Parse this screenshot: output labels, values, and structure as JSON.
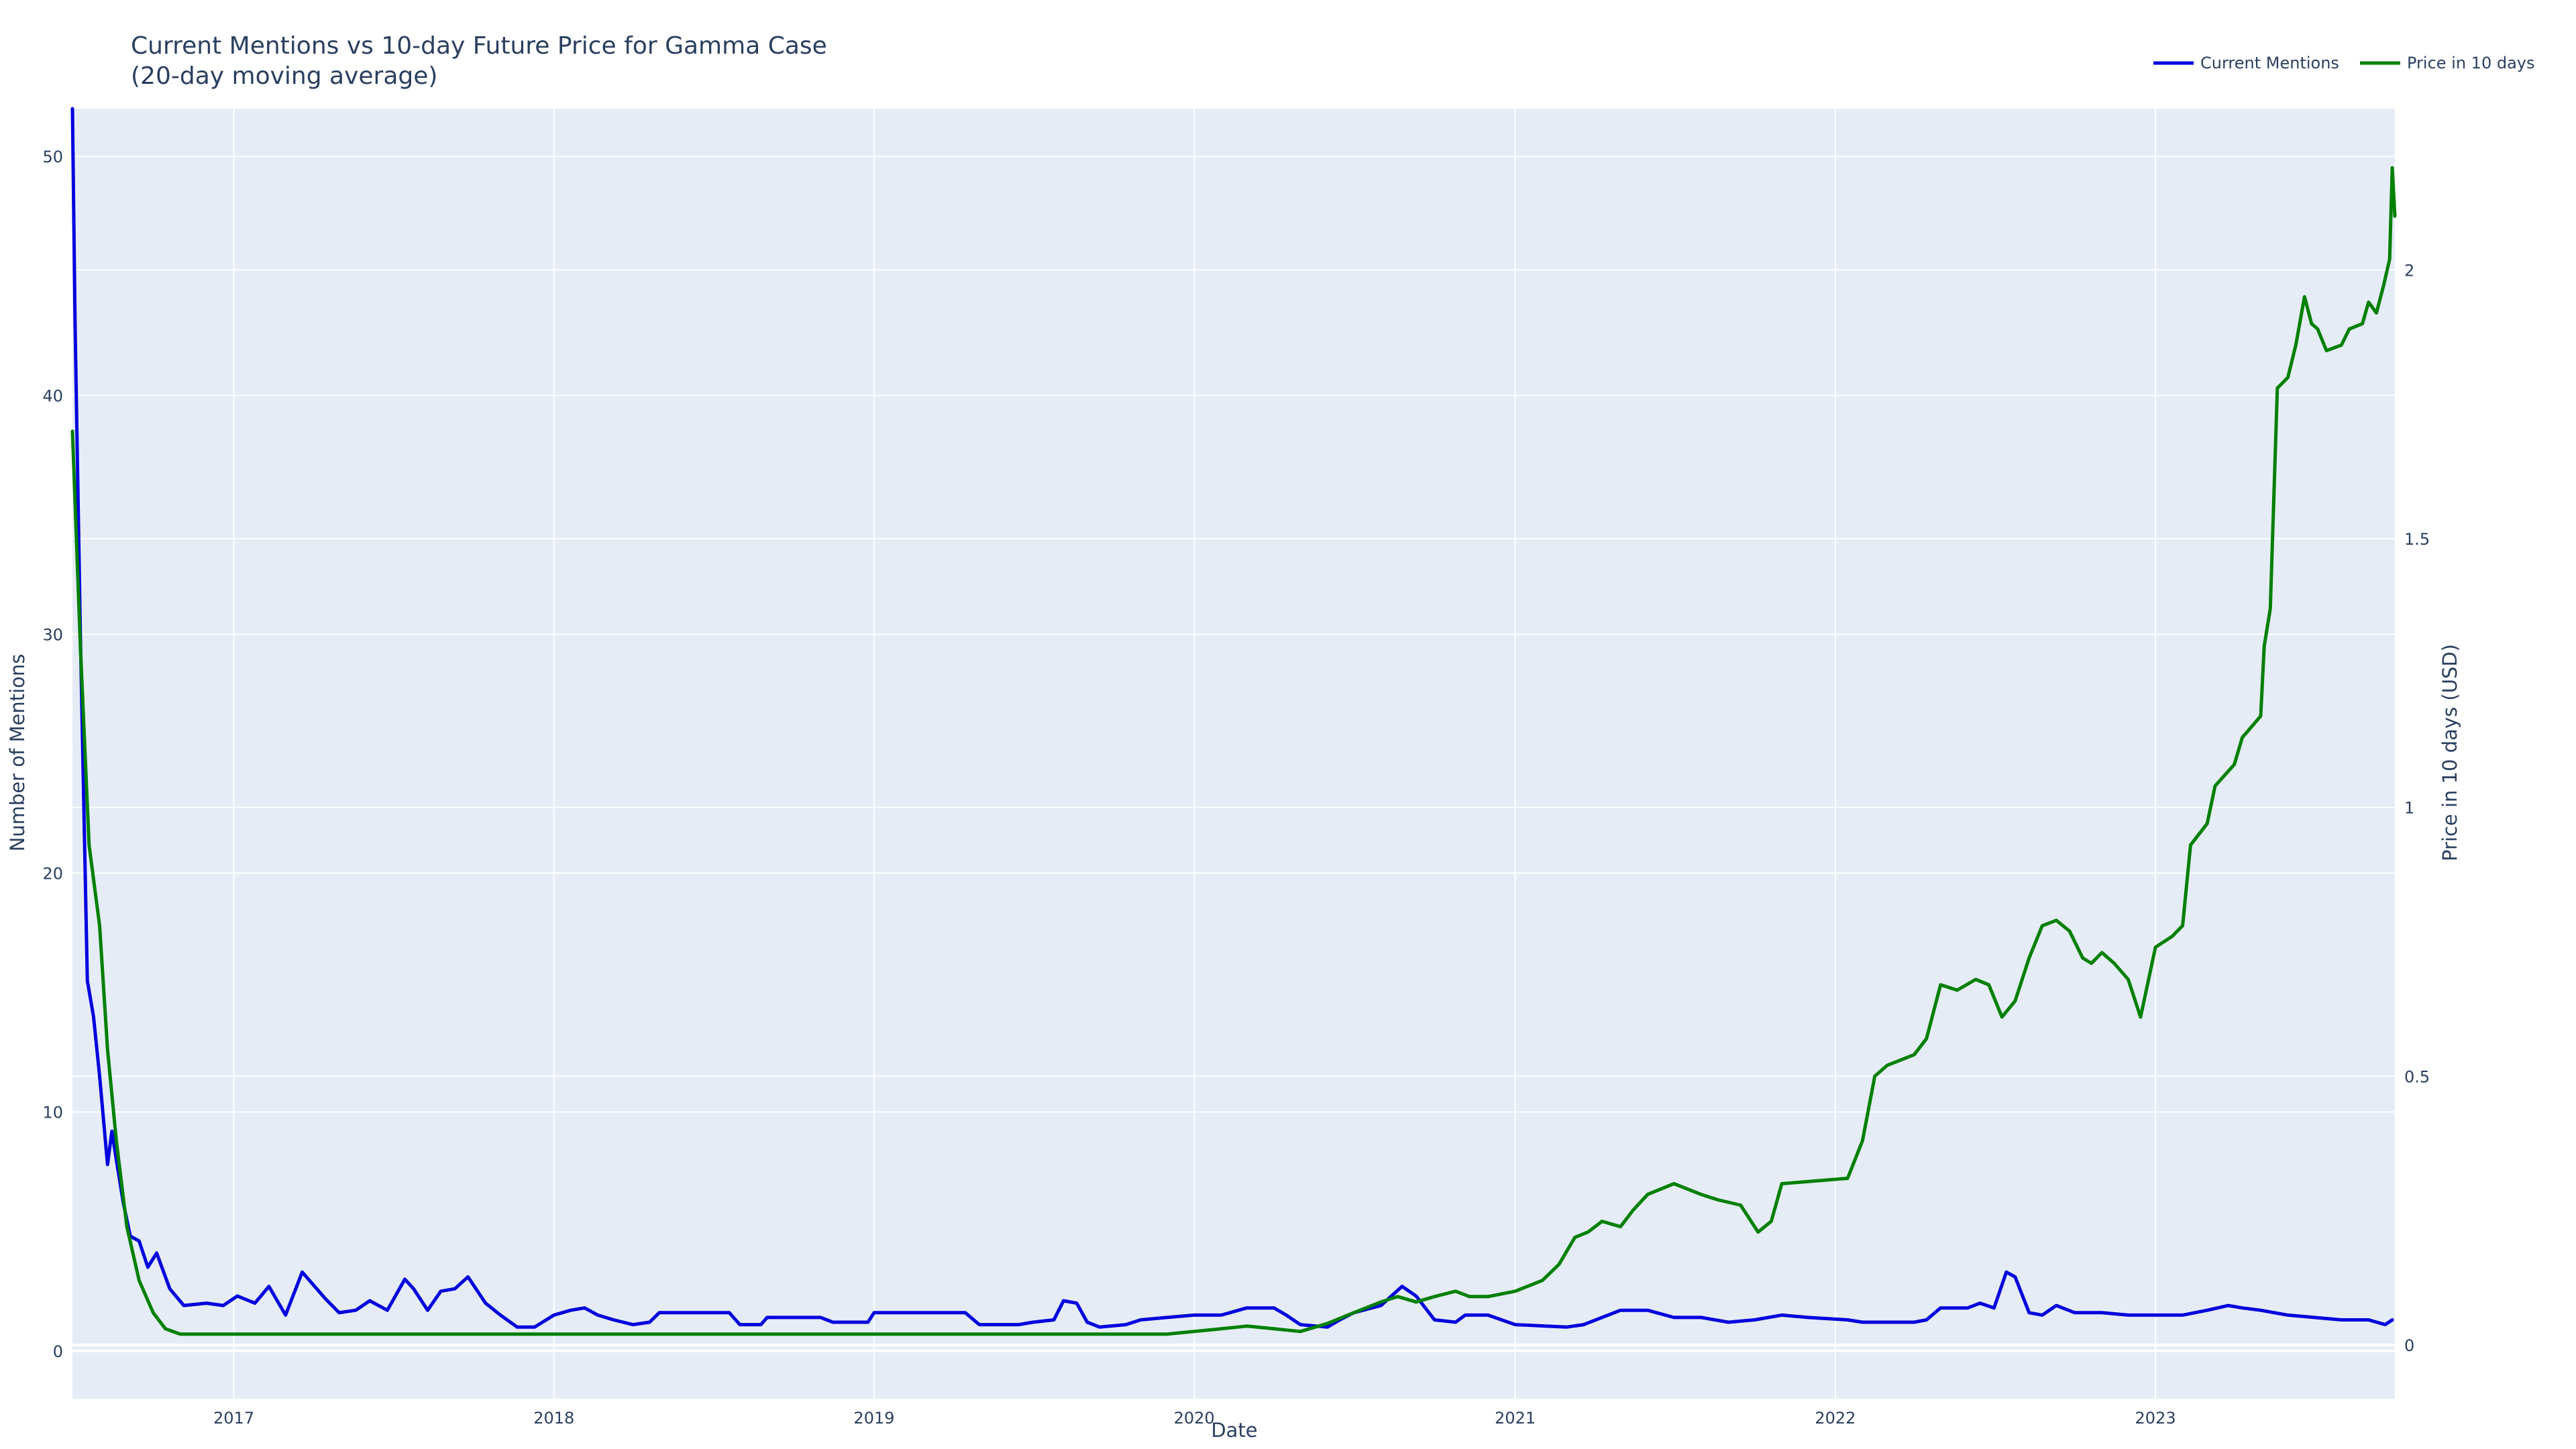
{
  "chart_data": {
    "type": "line",
    "title_line1": "Current Mentions vs 10-day Future Price for Gamma Case",
    "title_line2": "(20-day moving average)",
    "xlabel": "Date",
    "ylabel_left": "Number of Mentions",
    "ylabel_right": "Price in 10 days (USD)",
    "x_ticks": [
      "2017",
      "2018",
      "2019",
      "2020",
      "2021",
      "2022",
      "2023"
    ],
    "y_left_ticks": [
      "0",
      "10",
      "20",
      "30",
      "40",
      "50"
    ],
    "y_right_ticks": [
      "0",
      "0.5",
      "1",
      "1.5",
      "2"
    ],
    "xlim": [
      "2016-07-01",
      "2023-10-01"
    ],
    "ylim_left": [
      -2,
      52
    ],
    "ylim_right": [
      -0.1,
      2.3
    ],
    "grid": true,
    "legend_position": "top-right",
    "colors": {
      "mentions": "#0000dd",
      "price": "#008000",
      "plot_bg": "#e5ecf6",
      "grid": "#ffffff"
    },
    "series": [
      {
        "name": "Current Mentions",
        "axis": "left",
        "points": [
          [
            "2016-07-01",
            52.0
          ],
          [
            "2016-07-04",
            43.0
          ],
          [
            "2016-07-10",
            30.0
          ],
          [
            "2016-07-18",
            15.5
          ],
          [
            "2016-07-25",
            14.0
          ],
          [
            "2016-08-01",
            11.5
          ],
          [
            "2016-08-10",
            7.8
          ],
          [
            "2016-08-15",
            9.2
          ],
          [
            "2016-08-20",
            8.0
          ],
          [
            "2016-08-28",
            6.2
          ],
          [
            "2016-09-05",
            4.8
          ],
          [
            "2016-09-15",
            4.6
          ],
          [
            "2016-09-25",
            3.5
          ],
          [
            "2016-10-05",
            4.1
          ],
          [
            "2016-10-20",
            2.6
          ],
          [
            "2016-11-05",
            1.9
          ],
          [
            "2016-12-01",
            2.0
          ],
          [
            "2016-12-20",
            1.9
          ],
          [
            "2017-01-05",
            2.3
          ],
          [
            "2017-01-25",
            2.0
          ],
          [
            "2017-02-10",
            2.7
          ],
          [
            "2017-03-01",
            1.5
          ],
          [
            "2017-03-20",
            3.3
          ],
          [
            "2017-04-15",
            2.2
          ],
          [
            "2017-05-01",
            1.6
          ],
          [
            "2017-05-20",
            1.7
          ],
          [
            "2017-06-05",
            2.1
          ],
          [
            "2017-06-25",
            1.7
          ],
          [
            "2017-07-15",
            3.0
          ],
          [
            "2017-07-25",
            2.6
          ],
          [
            "2017-08-10",
            1.7
          ],
          [
            "2017-08-25",
            2.5
          ],
          [
            "2017-09-10",
            2.6
          ],
          [
            "2017-09-25",
            3.1
          ],
          [
            "2017-10-15",
            2.0
          ],
          [
            "2017-11-01",
            1.5
          ],
          [
            "2017-11-20",
            1.0
          ],
          [
            "2017-12-10",
            1.0
          ],
          [
            "2018-01-01",
            1.5
          ],
          [
            "2018-01-20",
            1.7
          ],
          [
            "2018-02-05",
            1.8
          ],
          [
            "2018-02-20",
            1.5
          ],
          [
            "2018-03-10",
            1.3
          ],
          [
            "2018-04-01",
            1.1
          ],
          [
            "2018-04-20",
            1.2
          ],
          [
            "2018-05-01",
            1.6
          ],
          [
            "2018-07-20",
            1.6
          ],
          [
            "2018-08-01",
            1.1
          ],
          [
            "2018-08-25",
            1.1
          ],
          [
            "2018-09-01",
            1.4
          ],
          [
            "2018-10-01",
            1.4
          ],
          [
            "2018-11-01",
            1.4
          ],
          [
            "2018-11-15",
            1.2
          ],
          [
            "2018-12-25",
            1.2
          ],
          [
            "2019-01-01",
            1.6
          ],
          [
            "2019-04-15",
            1.6
          ],
          [
            "2019-05-01",
            1.1
          ],
          [
            "2019-06-15",
            1.1
          ],
          [
            "2019-07-01",
            1.2
          ],
          [
            "2019-07-25",
            1.3
          ],
          [
            "2019-08-05",
            2.1
          ],
          [
            "2019-08-20",
            2.0
          ],
          [
            "2019-09-01",
            1.2
          ],
          [
            "2019-09-15",
            1.0
          ],
          [
            "2019-10-15",
            1.1
          ],
          [
            "2019-11-01",
            1.3
          ],
          [
            "2019-12-01",
            1.4
          ],
          [
            "2020-01-01",
            1.5
          ],
          [
            "2020-02-01",
            1.5
          ],
          [
            "2020-03-01",
            1.8
          ],
          [
            "2020-04-01",
            1.8
          ],
          [
            "2020-04-15",
            1.5
          ],
          [
            "2020-05-01",
            1.1
          ],
          [
            "2020-06-01",
            1.0
          ],
          [
            "2020-06-15",
            1.3
          ],
          [
            "2020-07-01",
            1.6
          ],
          [
            "2020-08-01",
            1.9
          ],
          [
            "2020-08-25",
            2.7
          ],
          [
            "2020-09-10",
            2.3
          ],
          [
            "2020-10-01",
            1.3
          ],
          [
            "2020-10-25",
            1.2
          ],
          [
            "2020-11-05",
            1.5
          ],
          [
            "2020-12-01",
            1.5
          ],
          [
            "2021-01-01",
            1.1
          ],
          [
            "2021-03-01",
            1.0
          ],
          [
            "2021-03-20",
            1.1
          ],
          [
            "2021-04-10",
            1.4
          ],
          [
            "2021-05-01",
            1.7
          ],
          [
            "2021-06-01",
            1.7
          ],
          [
            "2021-07-01",
            1.4
          ],
          [
            "2021-08-01",
            1.4
          ],
          [
            "2021-09-01",
            1.2
          ],
          [
            "2021-10-01",
            1.3
          ],
          [
            "2021-11-01",
            1.5
          ],
          [
            "2021-12-01",
            1.4
          ],
          [
            "2022-01-15",
            1.3
          ],
          [
            "2022-02-01",
            1.2
          ],
          [
            "2022-04-01",
            1.2
          ],
          [
            "2022-04-15",
            1.3
          ],
          [
            "2022-05-01",
            1.8
          ],
          [
            "2022-06-01",
            1.8
          ],
          [
            "2022-06-15",
            2.0
          ],
          [
            "2022-07-01",
            1.8
          ],
          [
            "2022-07-15",
            3.3
          ],
          [
            "2022-07-25",
            3.1
          ],
          [
            "2022-08-10",
            1.6
          ],
          [
            "2022-08-25",
            1.5
          ],
          [
            "2022-09-10",
            1.9
          ],
          [
            "2022-10-01",
            1.6
          ],
          [
            "2022-11-01",
            1.6
          ],
          [
            "2022-12-01",
            1.5
          ],
          [
            "2023-01-01",
            1.5
          ],
          [
            "2023-02-01",
            1.5
          ],
          [
            "2023-03-01",
            1.7
          ],
          [
            "2023-03-25",
            1.9
          ],
          [
            "2023-04-10",
            1.8
          ],
          [
            "2023-05-01",
            1.7
          ],
          [
            "2023-06-01",
            1.5
          ],
          [
            "2023-07-01",
            1.4
          ],
          [
            "2023-08-01",
            1.3
          ],
          [
            "2023-09-01",
            1.3
          ],
          [
            "2023-09-20",
            1.1
          ],
          [
            "2023-09-28",
            1.3
          ]
        ]
      },
      {
        "name": "Price in 10 days",
        "axis": "right",
        "points": [
          [
            "2016-07-01",
            1.7
          ],
          [
            "2016-07-10",
            1.3
          ],
          [
            "2016-07-20",
            0.93
          ],
          [
            "2016-08-01",
            0.78
          ],
          [
            "2016-08-10",
            0.55
          ],
          [
            "2016-08-20",
            0.38
          ],
          [
            "2016-09-01",
            0.22
          ],
          [
            "2016-09-15",
            0.12
          ],
          [
            "2016-10-01",
            0.06
          ],
          [
            "2016-10-15",
            0.03
          ],
          [
            "2016-11-01",
            0.02
          ],
          [
            "2016-12-01",
            0.02
          ],
          [
            "2019-12-01",
            0.02
          ],
          [
            "2020-02-01",
            0.03
          ],
          [
            "2020-03-01",
            0.035
          ],
          [
            "2020-04-01",
            0.03
          ],
          [
            "2020-05-01",
            0.025
          ],
          [
            "2020-06-01",
            0.04
          ],
          [
            "2020-07-01",
            0.06
          ],
          [
            "2020-08-01",
            0.08
          ],
          [
            "2020-08-20",
            0.09
          ],
          [
            "2020-09-10",
            0.08
          ],
          [
            "2020-10-01",
            0.09
          ],
          [
            "2020-10-25",
            0.1
          ],
          [
            "2020-11-10",
            0.09
          ],
          [
            "2020-12-01",
            0.09
          ],
          [
            "2021-01-01",
            0.1
          ],
          [
            "2021-02-01",
            0.12
          ],
          [
            "2021-02-20",
            0.15
          ],
          [
            "2021-03-10",
            0.2
          ],
          [
            "2021-03-25",
            0.21
          ],
          [
            "2021-04-10",
            0.23
          ],
          [
            "2021-05-01",
            0.22
          ],
          [
            "2021-05-15",
            0.25
          ],
          [
            "2021-06-01",
            0.28
          ],
          [
            "2021-07-01",
            0.3
          ],
          [
            "2021-08-01",
            0.28
          ],
          [
            "2021-08-20",
            0.27
          ],
          [
            "2021-09-15",
            0.26
          ],
          [
            "2021-10-05",
            0.21
          ],
          [
            "2021-10-20",
            0.23
          ],
          [
            "2021-11-01",
            0.3
          ],
          [
            "2022-01-15",
            0.31
          ],
          [
            "2022-02-01",
            0.38
          ],
          [
            "2022-02-15",
            0.5
          ],
          [
            "2022-03-01",
            0.52
          ],
          [
            "2022-04-01",
            0.54
          ],
          [
            "2022-04-15",
            0.57
          ],
          [
            "2022-05-01",
            0.67
          ],
          [
            "2022-05-20",
            0.66
          ],
          [
            "2022-06-10",
            0.68
          ],
          [
            "2022-06-25",
            0.67
          ],
          [
            "2022-07-10",
            0.61
          ],
          [
            "2022-07-25",
            0.64
          ],
          [
            "2022-08-10",
            0.72
          ],
          [
            "2022-08-25",
            0.78
          ],
          [
            "2022-09-10",
            0.79
          ],
          [
            "2022-09-25",
            0.77
          ],
          [
            "2022-10-10",
            0.72
          ],
          [
            "2022-10-20",
            0.71
          ],
          [
            "2022-11-01",
            0.73
          ],
          [
            "2022-11-15",
            0.71
          ],
          [
            "2022-12-01",
            0.68
          ],
          [
            "2022-12-15",
            0.61
          ],
          [
            "2023-01-01",
            0.74
          ],
          [
            "2023-01-20",
            0.76
          ],
          [
            "2023-02-01",
            0.78
          ],
          [
            "2023-02-10",
            0.93
          ],
          [
            "2023-03-01",
            0.97
          ],
          [
            "2023-03-10",
            1.04
          ],
          [
            "2023-04-01",
            1.08
          ],
          [
            "2023-04-10",
            1.13
          ],
          [
            "2023-05-01",
            1.17
          ],
          [
            "2023-05-05",
            1.3
          ],
          [
            "2023-05-12",
            1.37
          ],
          [
            "2023-05-20",
            1.78
          ],
          [
            "2023-06-01",
            1.8
          ],
          [
            "2023-06-10",
            1.86
          ],
          [
            "2023-06-20",
            1.95
          ],
          [
            "2023-06-28",
            1.9
          ],
          [
            "2023-07-05",
            1.89
          ],
          [
            "2023-07-15",
            1.85
          ],
          [
            "2023-08-01",
            1.86
          ],
          [
            "2023-08-10",
            1.89
          ],
          [
            "2023-08-25",
            1.9
          ],
          [
            "2023-09-01",
            1.94
          ],
          [
            "2023-09-10",
            1.92
          ],
          [
            "2023-09-18",
            1.97
          ],
          [
            "2023-09-25",
            2.02
          ],
          [
            "2023-09-28",
            2.19
          ],
          [
            "2023-10-01",
            2.1
          ]
        ]
      }
    ]
  }
}
